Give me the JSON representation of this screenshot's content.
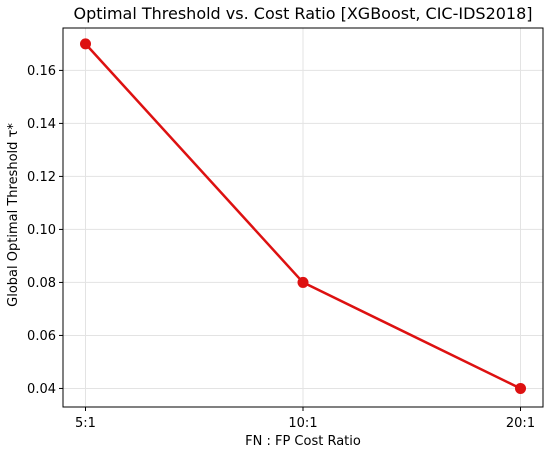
{
  "chart_data": {
    "type": "line",
    "title": "Optimal Threshold vs. Cost Ratio  [XGBoost, CIC-IDS2018]",
    "xlabel": "FN : FP Cost Ratio",
    "ylabel": "Global Optimal Threshold τ*",
    "categories": [
      "5:1",
      "10:1",
      "20:1"
    ],
    "values": [
      0.17,
      0.08,
      0.04
    ],
    "ylim": [
      0.033,
      0.176
    ],
    "yticks": [
      0.04,
      0.06,
      0.08,
      0.1,
      0.12,
      0.14,
      0.16
    ],
    "ytick_labels": [
      "0.04",
      "0.06",
      "0.08",
      "0.10",
      "0.12",
      "0.14",
      "0.16"
    ],
    "grid": true,
    "line_color": "#dd1111",
    "marker": "circle"
  }
}
